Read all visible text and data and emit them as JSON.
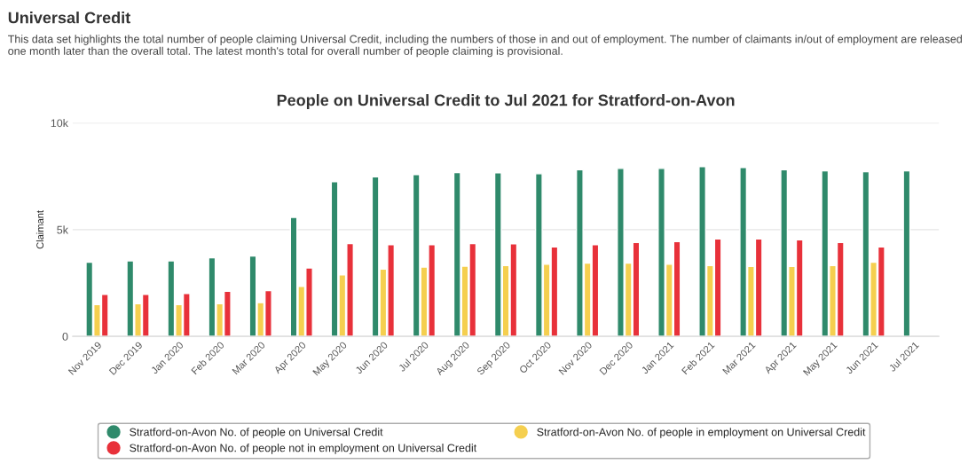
{
  "chart_data": {
    "type": "bar",
    "title": "People on Universal Credit to Jul 2021 for Stratford-on-Avon",
    "ylabel": "Claimant",
    "annotations": [
      "Universal Credit",
      "This data set highlights the total number of people claiming Universal Credit, including the numbers of those in and out of employment. The number of claimants in/out of employment are released one month later than the overall total. The latest month's total for overall number of people claiming is provisional."
    ],
    "categories": [
      "Nov 2019",
      "Dec 2019",
      "Jan 2020",
      "Feb 2020",
      "Mar 2020",
      "Apr 2020",
      "May 2020",
      "Jun 2020",
      "Jul 2020",
      "Aug 2020",
      "Sep 2020",
      "Oct 2020",
      "Nov 2020",
      "Dec 2020",
      "Jan 2021",
      "Feb 2021",
      "Mar 2021",
      "Apr 2021",
      "May 2021",
      "Jun 2021",
      "Jul 2021"
    ],
    "series": [
      {
        "name": "Stratford-on-Avon No. of people on Universal Credit",
        "color": "#2f8a6b",
        "values": [
          3480,
          3540,
          3540,
          3680,
          3770,
          5580,
          7250,
          7480,
          7580,
          7670,
          7660,
          7620,
          7810,
          7870,
          7870,
          7950,
          7910,
          7810,
          7760,
          7720,
          7760
        ]
      },
      {
        "name": "Stratford-on-Avon No. of people in employment on Universal Credit",
        "color": "#f5cf4f",
        "values": [
          1490,
          1530,
          1490,
          1530,
          1580,
          2340,
          2880,
          3150,
          3250,
          3290,
          3320,
          3380,
          3430,
          3430,
          3380,
          3320,
          3280,
          3280,
          3320,
          3480,
          null
        ]
      },
      {
        "name": "Stratford-on-Avon No. of people not in employment on Universal Credit",
        "color": "#e8313a",
        "values": [
          1970,
          1970,
          2010,
          2110,
          2150,
          3210,
          4350,
          4300,
          4300,
          4350,
          4340,
          4190,
          4300,
          4400,
          4440,
          4570,
          4570,
          4530,
          4400,
          4190,
          null
        ]
      }
    ],
    "ylim": [
      0,
      10000
    ],
    "yticks": [
      {
        "value": 0,
        "label": "0"
      },
      {
        "value": 5000,
        "label": "5k"
      },
      {
        "value": 10000,
        "label": "10k"
      }
    ],
    "grid": "y",
    "legend": "bottom"
  }
}
